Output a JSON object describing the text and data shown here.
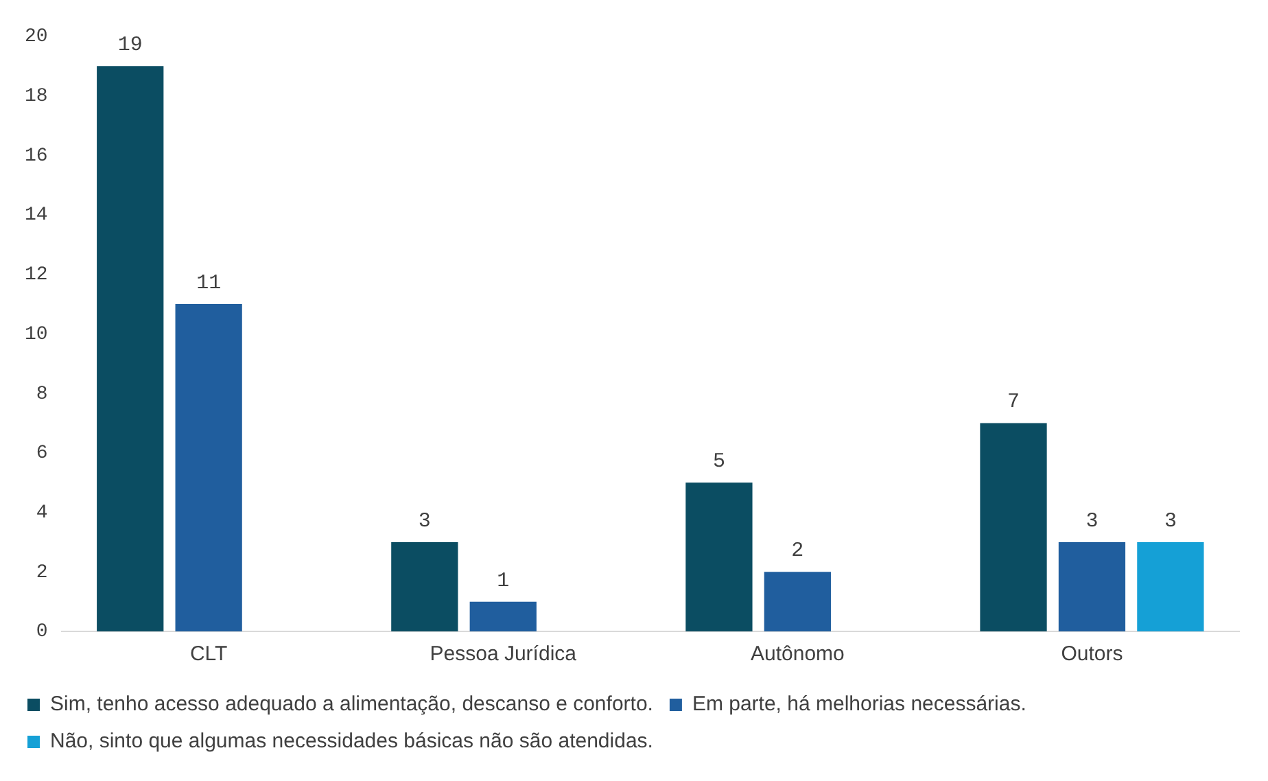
{
  "chart_data": {
    "type": "bar",
    "categories": [
      "CLT",
      "Pessoa Jurídica",
      "Autônomo",
      "Outors"
    ],
    "series": [
      {
        "name": "Sim, tenho acesso adequado a alimentação, descanso e conforto.",
        "color": "#0b4d62",
        "values": [
          19,
          3,
          5,
          7
        ]
      },
      {
        "name": "Em parte, há melhorias necessárias.",
        "color": "#205e9e",
        "values": [
          11,
          1,
          2,
          3
        ]
      },
      {
        "name": "Não, sinto que algumas necessidades básicas não são atendidas.",
        "color": "#15a0d6",
        "values": [
          null,
          null,
          null,
          3
        ]
      }
    ],
    "ylim": [
      0,
      20
    ],
    "yticks": [
      0,
      2,
      4,
      6,
      8,
      10,
      12,
      14,
      16,
      18,
      20
    ],
    "grid": false,
    "legend": "bottom",
    "data_labels": true
  }
}
